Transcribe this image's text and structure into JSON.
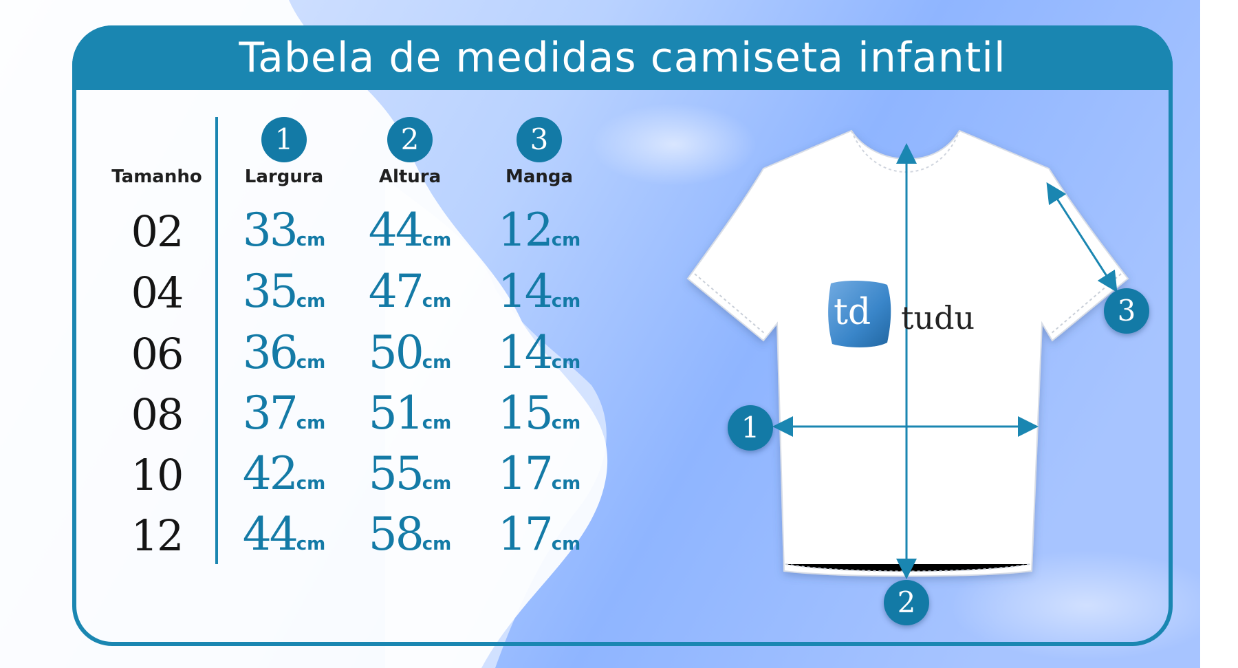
{
  "title": "Tabela de medidas camiseta infantil",
  "colors": {
    "accent": "#1a86b1",
    "marker": "#137aa6",
    "text": "#141414"
  },
  "table": {
    "size_header": "Tamanho",
    "columns": [
      {
        "number": "1",
        "label": "Largura"
      },
      {
        "number": "2",
        "label": "Altura"
      },
      {
        "number": "3",
        "label": "Manga"
      }
    ],
    "unit": "cm",
    "rows": [
      {
        "size": "02",
        "values": [
          "33",
          "44",
          "12"
        ]
      },
      {
        "size": "04",
        "values": [
          "35",
          "47",
          "14"
        ]
      },
      {
        "size": "06",
        "values": [
          "36",
          "50",
          "14"
        ]
      },
      {
        "size": "08",
        "values": [
          "37",
          "51",
          "15"
        ]
      },
      {
        "size": "10",
        "values": [
          "42",
          "55",
          "17"
        ]
      },
      {
        "size": "12",
        "values": [
          "44",
          "58",
          "17"
        ]
      }
    ]
  },
  "diagram": {
    "markers": [
      "1",
      "2",
      "3"
    ],
    "logo_mark": "td",
    "logo_name": "tudu"
  }
}
